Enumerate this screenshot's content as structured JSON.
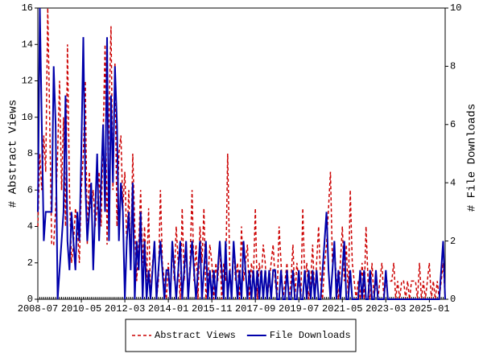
{
  "chart_data": {
    "type": "line",
    "ylabel": "# Abstract Views",
    "y2label": "# File Downloads",
    "legend": "bottom",
    "xlim": [
      "2008-07",
      "2025-09"
    ],
    "xticks": [
      "2008-07",
      "2010-05",
      "2012-03",
      "2014-01",
      "2015-11",
      "2017-09",
      "2019-07",
      "2021-05",
      "2023-03",
      "2025-01"
    ],
    "ylim": [
      0,
      16
    ],
    "yticks": [
      0,
      2,
      4,
      6,
      8,
      10,
      12,
      14,
      16
    ],
    "y2lim": [
      0,
      10
    ],
    "y2ticks": [
      0,
      2,
      4,
      6,
      8,
      10
    ],
    "x": [
      "2008-07",
      "2008-08",
      "2008-09",
      "2008-10",
      "2008-11",
      "2008-12",
      "2009-01",
      "2009-02",
      "2009-03",
      "2009-04",
      "2009-05",
      "2009-06",
      "2009-07",
      "2009-08",
      "2009-09",
      "2009-10",
      "2009-11",
      "2009-12",
      "2010-01",
      "2010-02",
      "2010-03",
      "2010-04",
      "2010-05",
      "2010-06",
      "2010-07",
      "2010-08",
      "2010-09",
      "2010-10",
      "2010-11",
      "2010-12",
      "2011-01",
      "2011-02",
      "2011-03",
      "2011-04",
      "2011-05",
      "2011-06",
      "2011-07",
      "2011-08",
      "2011-09",
      "2011-10",
      "2011-11",
      "2011-12",
      "2012-01",
      "2012-02",
      "2012-03",
      "2012-04",
      "2012-05",
      "2012-06",
      "2012-07",
      "2012-08",
      "2012-09",
      "2012-10",
      "2012-11",
      "2012-12",
      "2013-01",
      "2013-02",
      "2013-03",
      "2013-04",
      "2013-05",
      "2013-06",
      "2013-07",
      "2013-08",
      "2013-09",
      "2013-10",
      "2013-11",
      "2013-12",
      "2014-01",
      "2014-02",
      "2014-03",
      "2014-04",
      "2014-05",
      "2014-06",
      "2014-07",
      "2014-08",
      "2014-09",
      "2014-10",
      "2014-11",
      "2014-12",
      "2015-01",
      "2015-02",
      "2015-03",
      "2015-04",
      "2015-05",
      "2015-06",
      "2015-07",
      "2015-08",
      "2015-09",
      "2015-10",
      "2015-11",
      "2015-12",
      "2016-01",
      "2016-02",
      "2016-03",
      "2016-04",
      "2016-05",
      "2016-06",
      "2016-07",
      "2016-08",
      "2016-09",
      "2016-10",
      "2016-11",
      "2016-12",
      "2017-01",
      "2017-02",
      "2017-03",
      "2017-04",
      "2017-05",
      "2017-06",
      "2017-07",
      "2017-08",
      "2017-09",
      "2017-10",
      "2017-11",
      "2017-12",
      "2018-01",
      "2018-02",
      "2018-03",
      "2018-04",
      "2018-05",
      "2018-06",
      "2018-07",
      "2018-08",
      "2018-09",
      "2018-10",
      "2018-11",
      "2018-12",
      "2019-01",
      "2019-02",
      "2019-03",
      "2019-04",
      "2019-05",
      "2019-06",
      "2019-07",
      "2019-08",
      "2019-09",
      "2019-10",
      "2019-11",
      "2019-12",
      "2020-01",
      "2020-02",
      "2020-03",
      "2020-04",
      "2020-05",
      "2020-06",
      "2020-07",
      "2020-08",
      "2020-09",
      "2020-10",
      "2020-11",
      "2020-12",
      "2021-01",
      "2021-02",
      "2021-03",
      "2021-04",
      "2021-05",
      "2021-06",
      "2021-07",
      "2021-08",
      "2021-09",
      "2021-10",
      "2021-11",
      "2021-12",
      "2022-01",
      "2022-02",
      "2022-03",
      "2022-04",
      "2022-05",
      "2022-06",
      "2022-07",
      "2022-08",
      "2022-09",
      "2022-10",
      "2022-11",
      "2022-12",
      "2023-01",
      "2023-02",
      "2023-03",
      "2023-04",
      "2023-05",
      "2023-06",
      "2023-07",
      "2023-08",
      "2023-09",
      "2023-10",
      "2023-11",
      "2023-12",
      "2024-01",
      "2024-02",
      "2024-03",
      "2024-04",
      "2024-05",
      "2024-06",
      "2024-07",
      "2024-08",
      "2024-09",
      "2024-10",
      "2024-11",
      "2024-12",
      "2025-01",
      "2025-02",
      "2025-03",
      "2025-04",
      "2025-05",
      "2025-06",
      "2025-07",
      "2025-08",
      "2025-09"
    ],
    "series": [
      {
        "name": "Abstract Views",
        "color": "#cc0000",
        "dash": true,
        "values": [
          4,
          8,
          6,
          9,
          7,
          16,
          10,
          3,
          3,
          5,
          8,
          12,
          6,
          10,
          4,
          14,
          6,
          2,
          3,
          5,
          4,
          2,
          6,
          8,
          12,
          3,
          7,
          5,
          6,
          4,
          5,
          7,
          4,
          9,
          14,
          3,
          10,
          15,
          6,
          13,
          4,
          8,
          9,
          5,
          7,
          3,
          6,
          2,
          8,
          4,
          1,
          3,
          6,
          2,
          4,
          1,
          5,
          0,
          2,
          3,
          0,
          1,
          6,
          2,
          1,
          0,
          2,
          0,
          3,
          1,
          4,
          2,
          0,
          5,
          1,
          3,
          0,
          2,
          6,
          1,
          3,
          0,
          4,
          2,
          5,
          0,
          1,
          3,
          2,
          0,
          2,
          1,
          3,
          0,
          2,
          1,
          8,
          2,
          0,
          3,
          1,
          2,
          0,
          4,
          1,
          2,
          3,
          0,
          2,
          1,
          5,
          0,
          2,
          1,
          3,
          2,
          0,
          1,
          2,
          3,
          1,
          0,
          4,
          2,
          0,
          1,
          2,
          0,
          1,
          3,
          0,
          2,
          1,
          0,
          5,
          1,
          2,
          0,
          1,
          3,
          0,
          2,
          4,
          1,
          0,
          2,
          3,
          5,
          7,
          2,
          3,
          1,
          0,
          2,
          4,
          1,
          3,
          0,
          6,
          2,
          1,
          0,
          1,
          0,
          2,
          0,
          4,
          1,
          0,
          2,
          0,
          1,
          0,
          1,
          2,
          0,
          1,
          1,
          1,
          1,
          2,
          0,
          1,
          0,
          1,
          1,
          0,
          1,
          0,
          1,
          1,
          1,
          0,
          2,
          0,
          1,
          0,
          1,
          2,
          0,
          1,
          0,
          1,
          0,
          1,
          2,
          0
        ]
      },
      {
        "name": "File Downloads",
        "color": "#0000aa",
        "axis": "y2",
        "values": [
          3,
          10,
          6,
          2,
          3,
          3,
          3,
          3,
          8,
          6,
          0,
          1,
          2,
          3,
          7,
          2,
          1,
          3,
          2,
          1,
          3,
          2,
          5,
          9,
          4,
          2,
          3,
          4,
          1,
          3,
          5,
          2,
          4,
          6,
          3,
          9,
          2,
          7,
          4,
          8,
          6,
          2,
          4,
          3,
          0,
          2,
          3,
          1,
          4,
          0,
          2,
          1,
          3,
          0,
          2,
          0,
          1,
          0,
          1,
          2,
          0,
          1,
          2,
          1,
          0,
          1,
          1,
          0,
          2,
          1,
          0,
          1,
          2,
          0,
          1,
          2,
          0,
          1,
          2,
          1,
          0,
          1,
          2,
          0,
          1,
          2,
          0,
          1,
          0,
          1,
          0,
          1,
          2,
          1,
          0,
          2,
          0,
          1,
          0,
          2,
          1,
          0,
          1,
          0,
          2,
          1,
          0,
          1,
          0,
          1,
          0,
          1,
          0,
          1,
          0,
          1,
          0,
          1,
          0,
          1,
          1,
          0,
          0,
          1,
          0,
          0,
          1,
          0,
          0,
          1,
          0,
          0,
          1,
          0,
          0,
          1,
          0,
          1,
          0,
          1,
          0,
          1,
          0,
          0,
          1,
          2,
          3,
          1,
          0,
          1,
          2,
          0,
          1,
          0,
          1,
          2,
          0,
          0,
          1,
          0,
          0,
          0,
          0,
          1,
          0,
          1,
          0,
          0,
          1,
          0,
          0,
          1,
          0,
          0,
          0,
          0,
          1,
          0,
          0,
          0,
          0,
          0,
          0,
          0,
          0,
          0,
          0,
          0,
          0,
          0,
          0,
          0,
          0,
          0,
          0,
          0,
          0,
          0,
          0,
          0,
          0,
          0,
          0,
          0,
          1,
          2,
          0
        ]
      }
    ]
  }
}
